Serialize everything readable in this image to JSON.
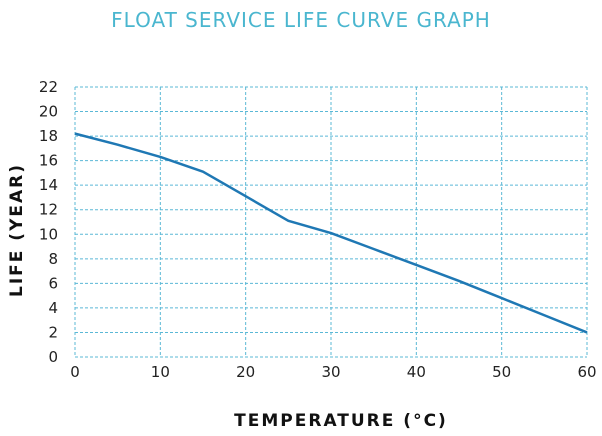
{
  "chart_data": {
    "type": "line",
    "title": "FLOAT SERVICE LIFE CURVE GRAPH",
    "xlabel": "TEMPERATURE (°C)",
    "ylabel": "LIFE (YEAR)",
    "xlim": [
      0,
      60
    ],
    "ylim": [
      0,
      22
    ],
    "xticks": [
      0,
      10,
      20,
      30,
      40,
      50,
      60
    ],
    "yticks": [
      0,
      2,
      4,
      6,
      8,
      10,
      12,
      14,
      16,
      18,
      20,
      22
    ],
    "grid": true,
    "grid_style": "dashed",
    "series": [
      {
        "x": [
          0,
          5,
          10,
          15,
          20,
          25,
          30,
          35,
          40,
          45,
          50,
          55,
          60
        ],
        "y": [
          18.2,
          17.3,
          16.3,
          15.1,
          13.1,
          11.1,
          10.1,
          8.8,
          7.5,
          6.2,
          4.8,
          3.4,
          2.0
        ],
        "color": "#1f78b4"
      }
    ],
    "colors": {
      "title": "#4ab6cf",
      "grid": "#5bb8d6",
      "line": "#1f78b4"
    }
  }
}
